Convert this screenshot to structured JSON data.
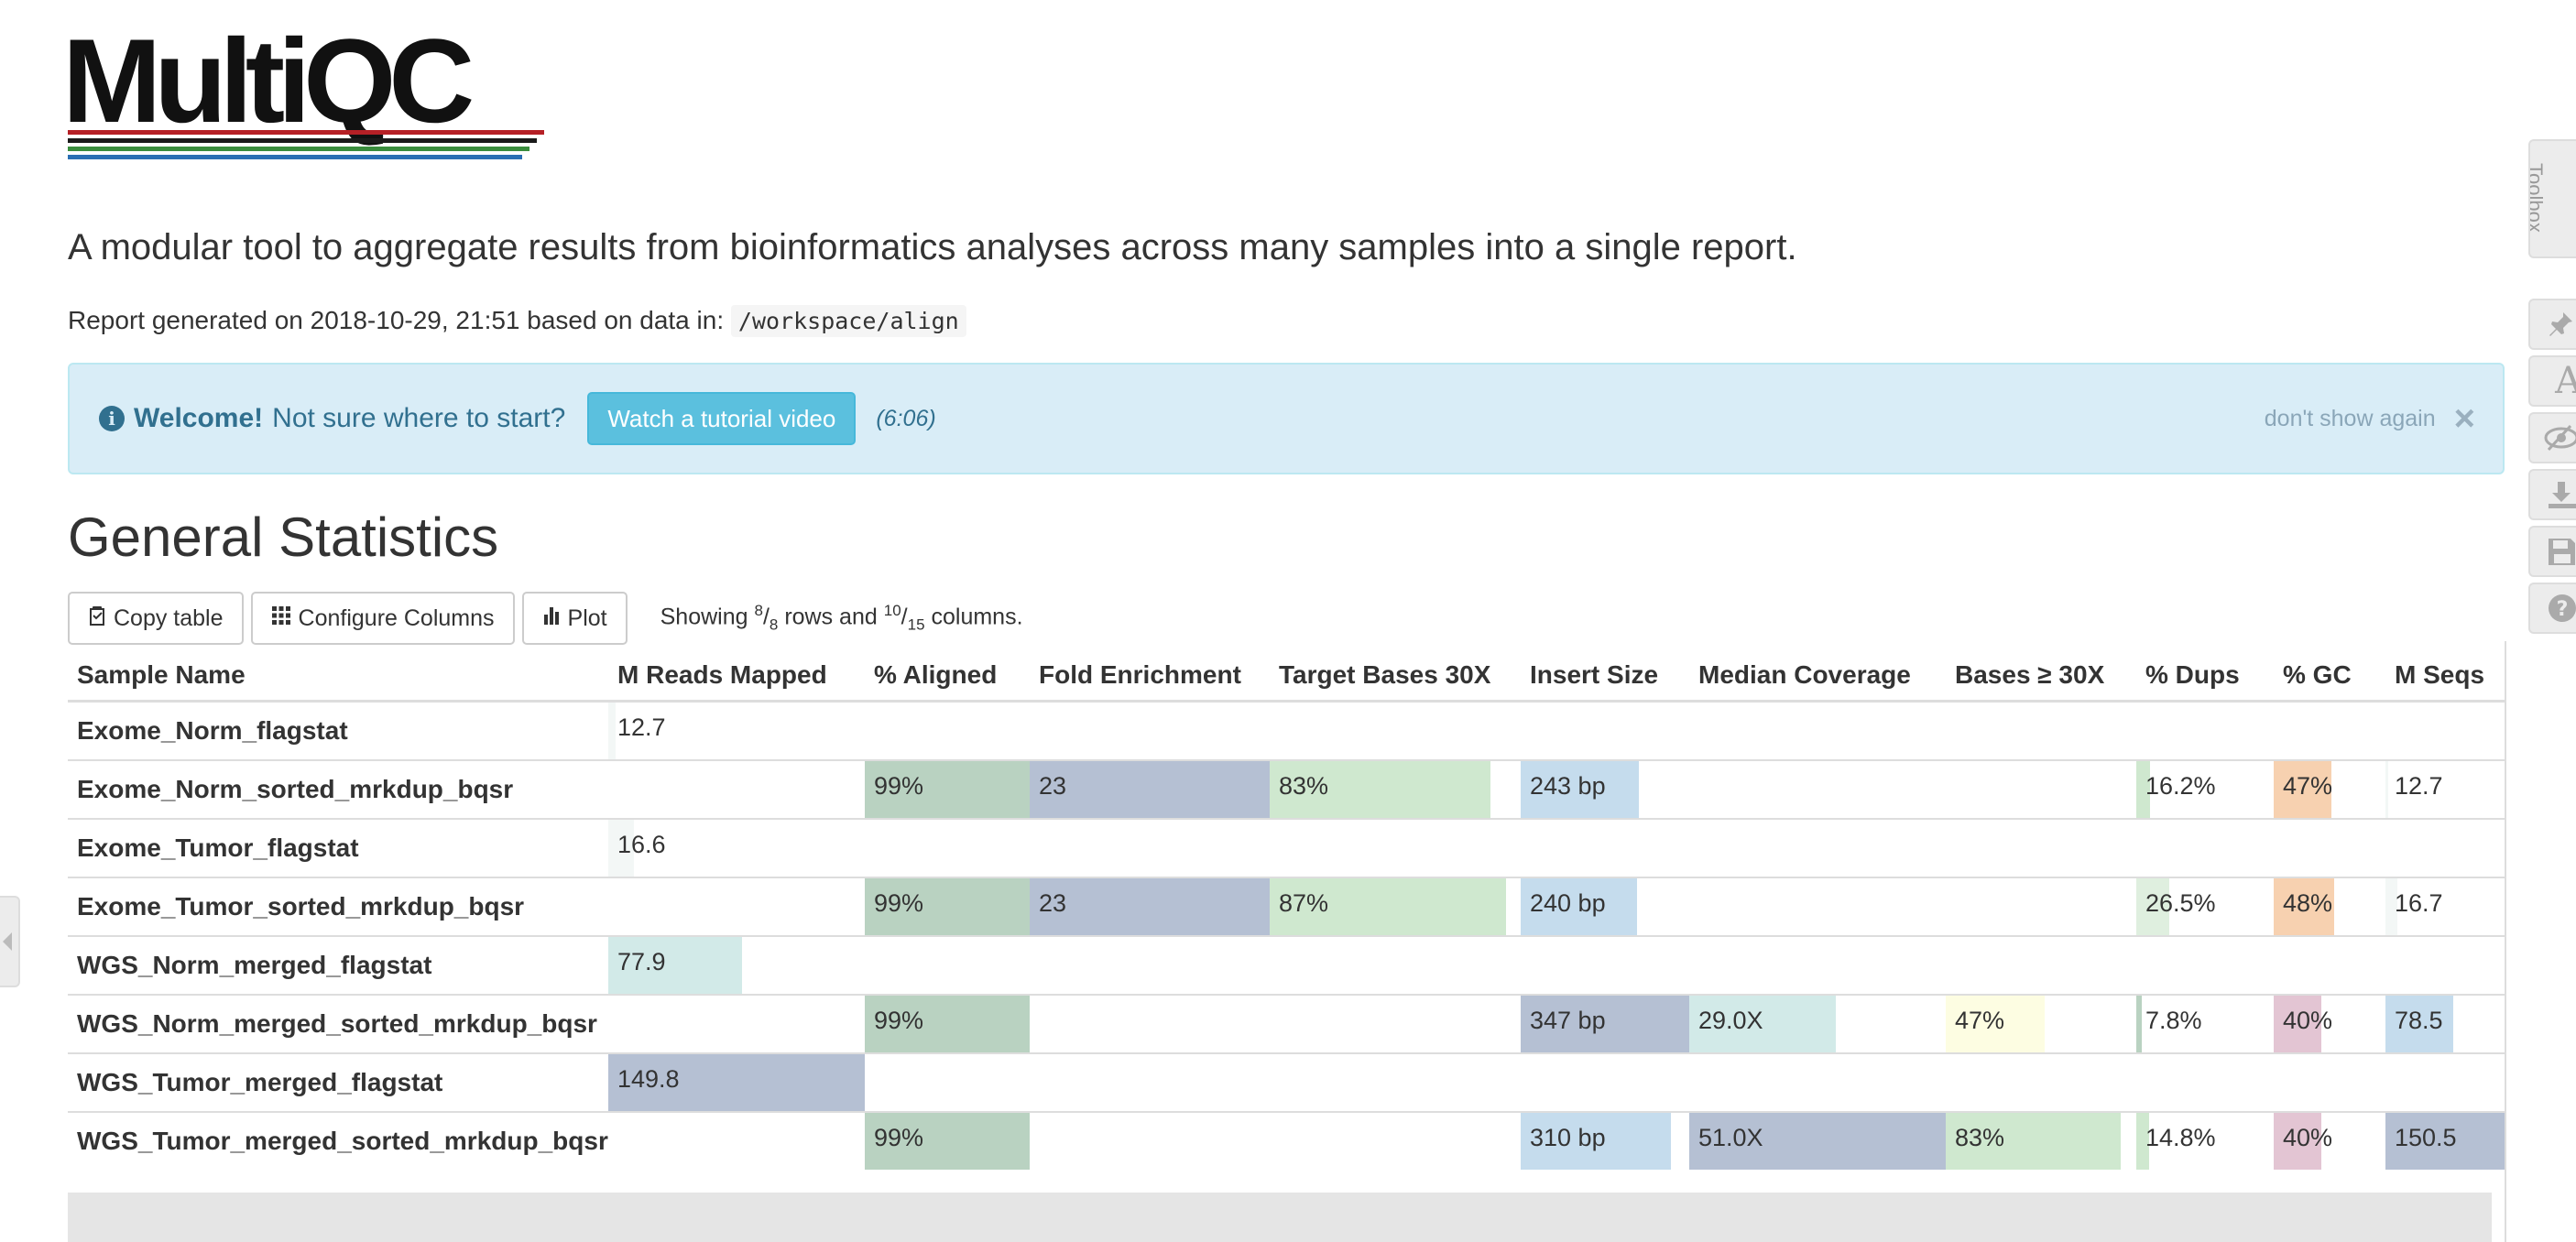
{
  "logo": {
    "text": "MultiQC",
    "bar_colors": [
      "#b52026",
      "#1a1a1a",
      "#3a8d3d",
      "#2a6fb3"
    ]
  },
  "lead": "A modular tool to aggregate results from bioinformatics analyses across many samples into a single report.",
  "report": {
    "prefix": "Report generated on 2018-10-29, 21:51 based on data in:",
    "path": "/workspace/align"
  },
  "welcome": {
    "icon": "info-circle-icon",
    "strong": "Welcome!",
    "text": "Not sure where to start?",
    "button": "Watch a tutorial video",
    "duration": "(6:06)",
    "dismiss": "don't show again",
    "close": "×"
  },
  "section_title": "General Statistics",
  "toolbar": {
    "copy": "Copy table",
    "configure": "Configure Columns",
    "plot": "Plot",
    "showing_prefix": "Showing",
    "rows_shown": "8",
    "rows_total": "8",
    "rows_word": "rows and",
    "cols_shown": "10",
    "cols_total": "15",
    "cols_word": "columns."
  },
  "table": {
    "headers": [
      "Sample Name",
      "M Reads Mapped",
      "% Aligned",
      "Fold Enrichment",
      "Target Bases 30X",
      "Insert Size",
      "Median Coverage",
      "Bases ≥ 30X",
      "% Dups",
      "% GC",
      "M Seqs"
    ],
    "col_colors": [
      "",
      "#a8c4da",
      "#8fb89b",
      "#7d8fb0",
      "#a7d8a7",
      "#8fbde0",
      "#a7d3de",
      "#fff1a8",
      "#a7d8a7",
      "#f3a765",
      "#a7c4e0"
    ],
    "rows": [
      {
        "name": "Exome_Norm_flagstat",
        "cells": [
          {
            "text": "12.7",
            "pct": 0.03,
            "color": "#f3f7f6"
          },
          null,
          null,
          null,
          null,
          null,
          null,
          null,
          null,
          null
        ]
      },
      {
        "name": "Exome_Norm_sorted_mrkdup_bqsr",
        "cells": [
          null,
          {
            "text": "99%",
            "pct": 1.0,
            "color": "#b9d2c1"
          },
          {
            "text": "23",
            "pct": 1.0,
            "color": "#b5c0d3"
          },
          {
            "text": "83%",
            "pct": 0.88,
            "color": "#cfe8cf"
          },
          {
            "text": "243 bp",
            "pct": 0.7,
            "color": "#c5dced"
          },
          null,
          null,
          {
            "text": "16.2%",
            "pct": 0.1,
            "color": "#cfe8cf"
          },
          {
            "text": "47%",
            "pct": 0.52,
            "color": "#f7d1b0"
          },
          {
            "text": "12.7",
            "pct": 0.02,
            "color": "#f3f7f6"
          }
        ]
      },
      {
        "name": "Exome_Tumor_flagstat",
        "cells": [
          {
            "text": "16.6",
            "pct": 0.1,
            "color": "#f3f7f6"
          },
          null,
          null,
          null,
          null,
          null,
          null,
          null,
          null,
          null
        ]
      },
      {
        "name": "Exome_Tumor_sorted_mrkdup_bqsr",
        "cells": [
          null,
          {
            "text": "99%",
            "pct": 1.0,
            "color": "#b9d2c1"
          },
          {
            "text": "23",
            "pct": 1.0,
            "color": "#b5c0d3"
          },
          {
            "text": "87%",
            "pct": 0.94,
            "color": "#cfe8cf"
          },
          {
            "text": "240 bp",
            "pct": 0.69,
            "color": "#c5dced"
          },
          null,
          null,
          {
            "text": "26.5%",
            "pct": 0.24,
            "color": "#dfefdf"
          },
          {
            "text": "48%",
            "pct": 0.54,
            "color": "#f7d1b0"
          },
          {
            "text": "16.7",
            "pct": 0.1,
            "color": "#f3f7f6"
          }
        ]
      },
      {
        "name": "WGS_Norm_merged_flagstat",
        "cells": [
          {
            "text": "77.9",
            "pct": 0.52,
            "color": "#d2eae8"
          },
          null,
          null,
          null,
          null,
          null,
          null,
          null,
          null,
          null
        ]
      },
      {
        "name": "WGS_Norm_merged_sorted_mrkdup_bqsr",
        "cells": [
          null,
          {
            "text": "99%",
            "pct": 1.0,
            "color": "#b9d2c1"
          },
          null,
          null,
          {
            "text": "347 bp",
            "pct": 1.0,
            "color": "#b5c0d3"
          },
          {
            "text": "29.0X",
            "pct": 0.57,
            "color": "#d2eae8"
          },
          {
            "text": "47%",
            "pct": 0.52,
            "color": "#fdfde2"
          },
          {
            "text": "7.8%",
            "pct": 0.04,
            "color": "#b9d2c1"
          },
          {
            "text": "40%",
            "pct": 0.43,
            "color": "#e3c5d3"
          },
          {
            "text": "78.5",
            "pct": 0.57,
            "color": "#c5dced"
          }
        ]
      },
      {
        "name": "WGS_Tumor_merged_flagstat",
        "cells": [
          {
            "text": "149.8",
            "pct": 1.0,
            "color": "#b5c0d3"
          },
          null,
          null,
          null,
          null,
          null,
          null,
          null,
          null,
          null
        ]
      },
      {
        "name": "WGS_Tumor_merged_sorted_mrkdup_bqsr",
        "cells": [
          null,
          {
            "text": "99%",
            "pct": 1.0,
            "color": "#b9d2c1"
          },
          null,
          null,
          {
            "text": "310 bp",
            "pct": 0.89,
            "color": "#c5dced"
          },
          {
            "text": "51.0X",
            "pct": 1.0,
            "color": "#b5c0d3"
          },
          {
            "text": "83%",
            "pct": 0.92,
            "color": "#cfe8cf"
          },
          {
            "text": "14.8%",
            "pct": 0.09,
            "color": "#cfe8cf"
          },
          {
            "text": "40%",
            "pct": 0.43,
            "color": "#e3c5d3"
          },
          {
            "text": "150.5",
            "pct": 1.0,
            "color": "#b5c0d3"
          }
        ]
      }
    ]
  },
  "toolbox": {
    "tab_label": "Toolbox",
    "buttons": [
      {
        "name": "pin-icon"
      },
      {
        "name": "font-icon"
      },
      {
        "name": "eye-slash-icon"
      },
      {
        "name": "download-icon"
      },
      {
        "name": "save-icon"
      },
      {
        "name": "help-icon"
      }
    ]
  }
}
